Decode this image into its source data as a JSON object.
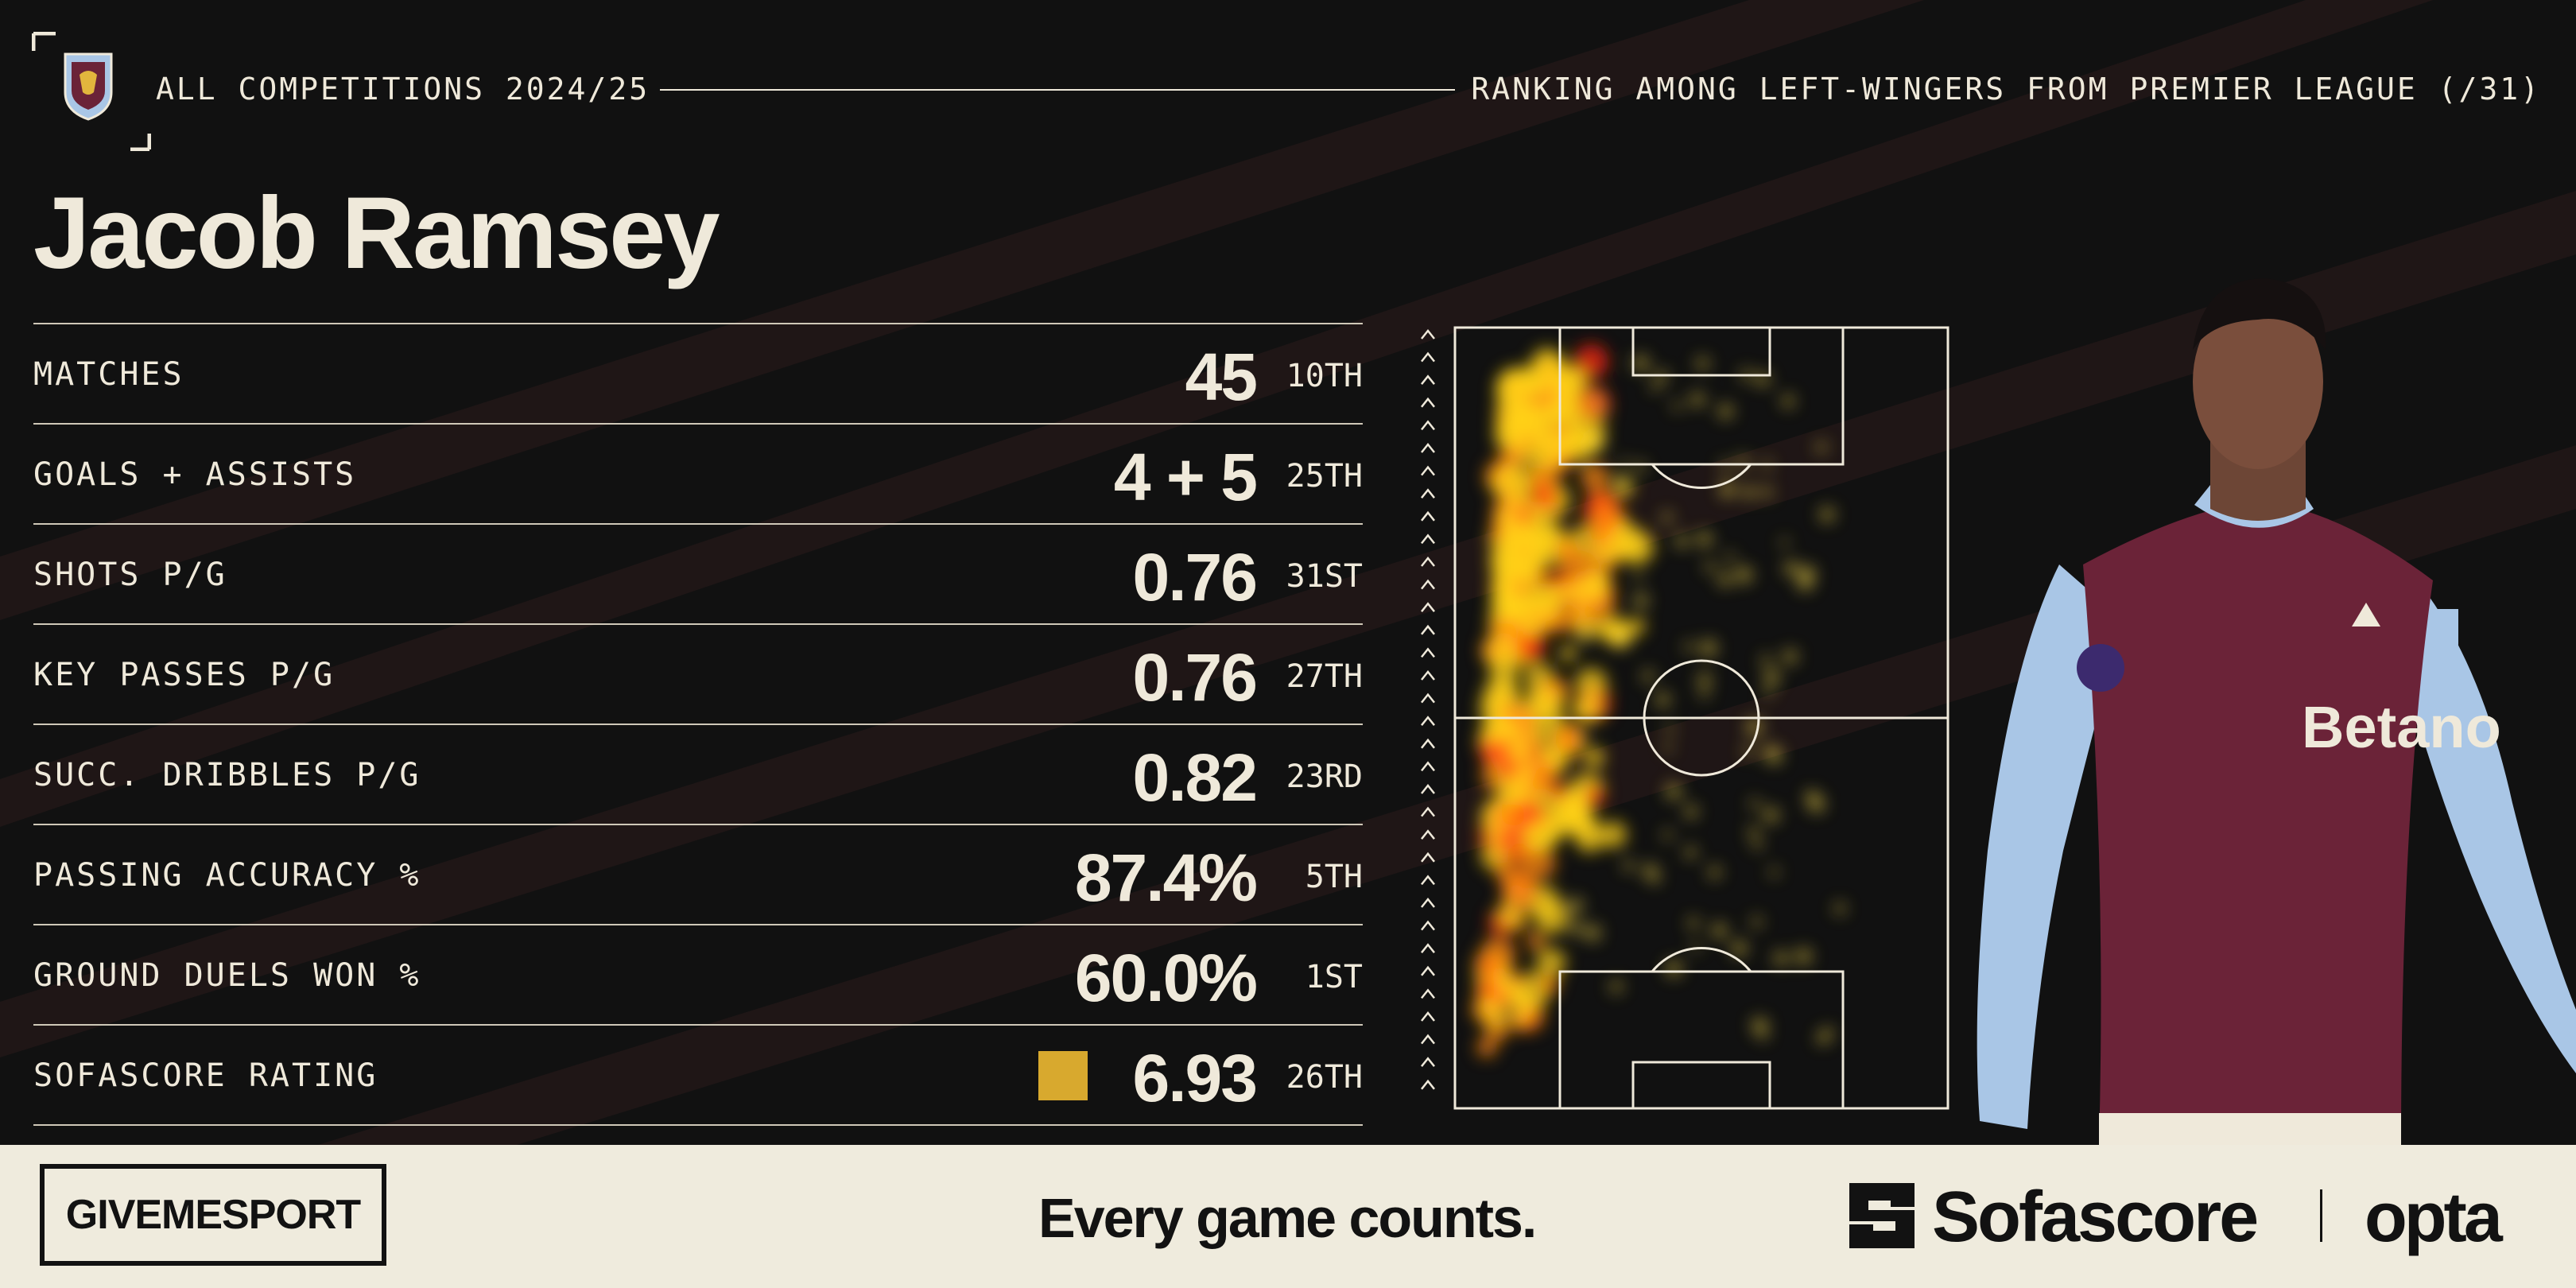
{
  "header": {
    "competition": "ALL COMPETITIONS 2024/25",
    "ranking_context": "RANKING AMONG LEFT-WINGERS FROM PREMIER LEAGUE (/31)"
  },
  "player": {
    "name": "Jacob Ramsey"
  },
  "stats": [
    {
      "label": "MATCHES",
      "value": "45",
      "rank": "10TH"
    },
    {
      "label": "GOALS + ASSISTS",
      "value": "4 + 5",
      "rank": "25TH"
    },
    {
      "label": "SHOTS P/G",
      "value": "0.76",
      "rank": "31ST"
    },
    {
      "label": "KEY PASSES P/G",
      "value": "0.76",
      "rank": "27TH"
    },
    {
      "label": "SUCC. DRIBBLES P/G",
      "value": "0.82",
      "rank": "23RD"
    },
    {
      "label": "PASSING ACCURACY %",
      "value": "87.4%",
      "rank": "5TH"
    },
    {
      "label": "GROUND DUELS WON %",
      "value": "60.0%",
      "rank": "1ST"
    },
    {
      "label": "SOFASCORE RATING",
      "value": "6.93",
      "rank": "26TH"
    }
  ],
  "colors": {
    "background": "#111111",
    "text": "#efe9da",
    "rating_badge": "#d8a92e",
    "footer": "#efebdd",
    "shirt_claret": "#6b2338",
    "shirt_sleeve": "#a9c6e6"
  },
  "icons": {
    "club_crest": "aston-villa-crest-icon",
    "attack_direction": "chevron-up-icon",
    "sofascore_logo": "sofascore-logo-icon"
  },
  "footer": {
    "brand": "GIVEMESPORT",
    "tagline": "Every game counts.",
    "sofascore": "Sofascore",
    "opta": "opta"
  }
}
